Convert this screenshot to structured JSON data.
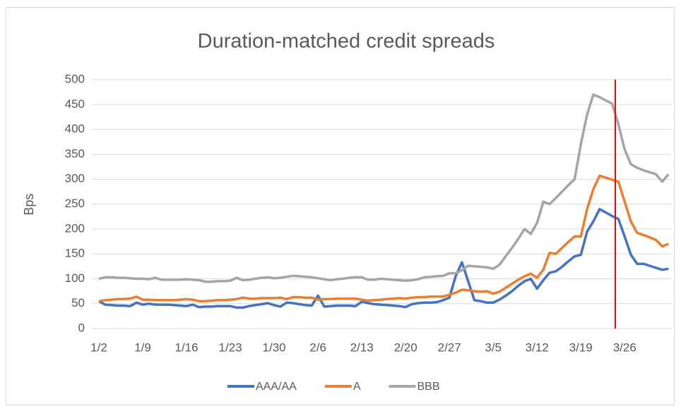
{
  "chart_data": {
    "type": "line",
    "title": "Duration-matched credit spreads",
    "y_label": "Bps",
    "categories": [
      "1/2",
      null,
      null,
      null,
      null,
      null,
      null,
      "1/9",
      null,
      null,
      null,
      null,
      null,
      null,
      "1/16",
      null,
      null,
      null,
      null,
      null,
      null,
      "1/23",
      null,
      null,
      null,
      null,
      null,
      null,
      "1/30",
      null,
      null,
      null,
      null,
      null,
      null,
      "2/6",
      null,
      null,
      null,
      null,
      null,
      null,
      "2/13",
      null,
      null,
      null,
      null,
      null,
      null,
      "2/20",
      null,
      null,
      null,
      null,
      null,
      null,
      "2/27",
      null,
      null,
      null,
      null,
      null,
      null,
      "3/5",
      null,
      null,
      null,
      null,
      null,
      null,
      "3/12",
      null,
      null,
      null,
      null,
      null,
      null,
      "3/19",
      null,
      null,
      null,
      null,
      null,
      null,
      "3/26",
      null,
      null,
      null,
      null,
      null,
      null,
      null
    ],
    "series": [
      {
        "name": "AAA/AA",
        "color": "#4472c4",
        "values": [
          55,
          48,
          47,
          46,
          46,
          45,
          52,
          48,
          50,
          48,
          48,
          48,
          47,
          46,
          45,
          48,
          43,
          44,
          44,
          45,
          45,
          45,
          42,
          42,
          45,
          47,
          49,
          51,
          47,
          44,
          52,
          51,
          49,
          47,
          46,
          66,
          44,
          45,
          46,
          46,
          46,
          45,
          54,
          51,
          49,
          48,
          47,
          46,
          45,
          43,
          49,
          51,
          52,
          52,
          53,
          57,
          62,
          105,
          133,
          95,
          57,
          55,
          52,
          52,
          58,
          66,
          75,
          86,
          95,
          100,
          80,
          97,
          112,
          115,
          124,
          135,
          145,
          148,
          195,
          215,
          240,
          233,
          226,
          220,
          185,
          148,
          130,
          130,
          126,
          122,
          118,
          120
        ]
      },
      {
        "name": "A",
        "color": "#ed7d31",
        "values": [
          55,
          57,
          58,
          59,
          59,
          60,
          64,
          58,
          58,
          57,
          57,
          57,
          57,
          58,
          59,
          58,
          55,
          55,
          56,
          57,
          57,
          58,
          59,
          62,
          60,
          60,
          61,
          61,
          61,
          62,
          59,
          63,
          63,
          62,
          62,
          58,
          59,
          59,
          60,
          60,
          60,
          60,
          58,
          56,
          57,
          58,
          59,
          60,
          61,
          60,
          62,
          63,
          63,
          64,
          64,
          64,
          68,
          72,
          78,
          77,
          75,
          74,
          75,
          70,
          74,
          82,
          90,
          98,
          105,
          110,
          102,
          118,
          152,
          150,
          162,
          174,
          185,
          185,
          240,
          280,
          307,
          303,
          299,
          295,
          255,
          215,
          192,
          188,
          183,
          178,
          165,
          170
        ]
      },
      {
        "name": "BBB",
        "color": "#a5a5a5",
        "values": [
          100,
          103,
          103,
          102,
          102,
          101,
          100,
          100,
          99,
          102,
          98,
          98,
          98,
          98,
          99,
          98,
          97,
          94,
          94,
          95,
          95,
          96,
          102,
          97,
          98,
          100,
          102,
          103,
          101,
          102,
          104,
          106,
          105,
          104,
          103,
          101,
          99,
          97,
          99,
          100,
          102,
          103,
          103,
          98,
          98,
          100,
          99,
          98,
          97,
          96,
          97,
          99,
          103,
          104,
          105,
          106,
          111,
          111,
          117,
          126,
          125,
          124,
          123,
          120,
          128,
          145,
          162,
          180,
          200,
          190,
          212,
          255,
          250,
          262,
          275,
          288,
          300,
          370,
          430,
          470,
          465,
          458,
          452,
          410,
          360,
          330,
          323,
          318,
          314,
          310,
          295,
          310
        ]
      }
    ],
    "ylim": [
      0,
      500
    ],
    "yticks": [
      0,
      50,
      100,
      150,
      200,
      250,
      300,
      350,
      400,
      450,
      500
    ],
    "grid": true,
    "legend": "bottom"
  }
}
